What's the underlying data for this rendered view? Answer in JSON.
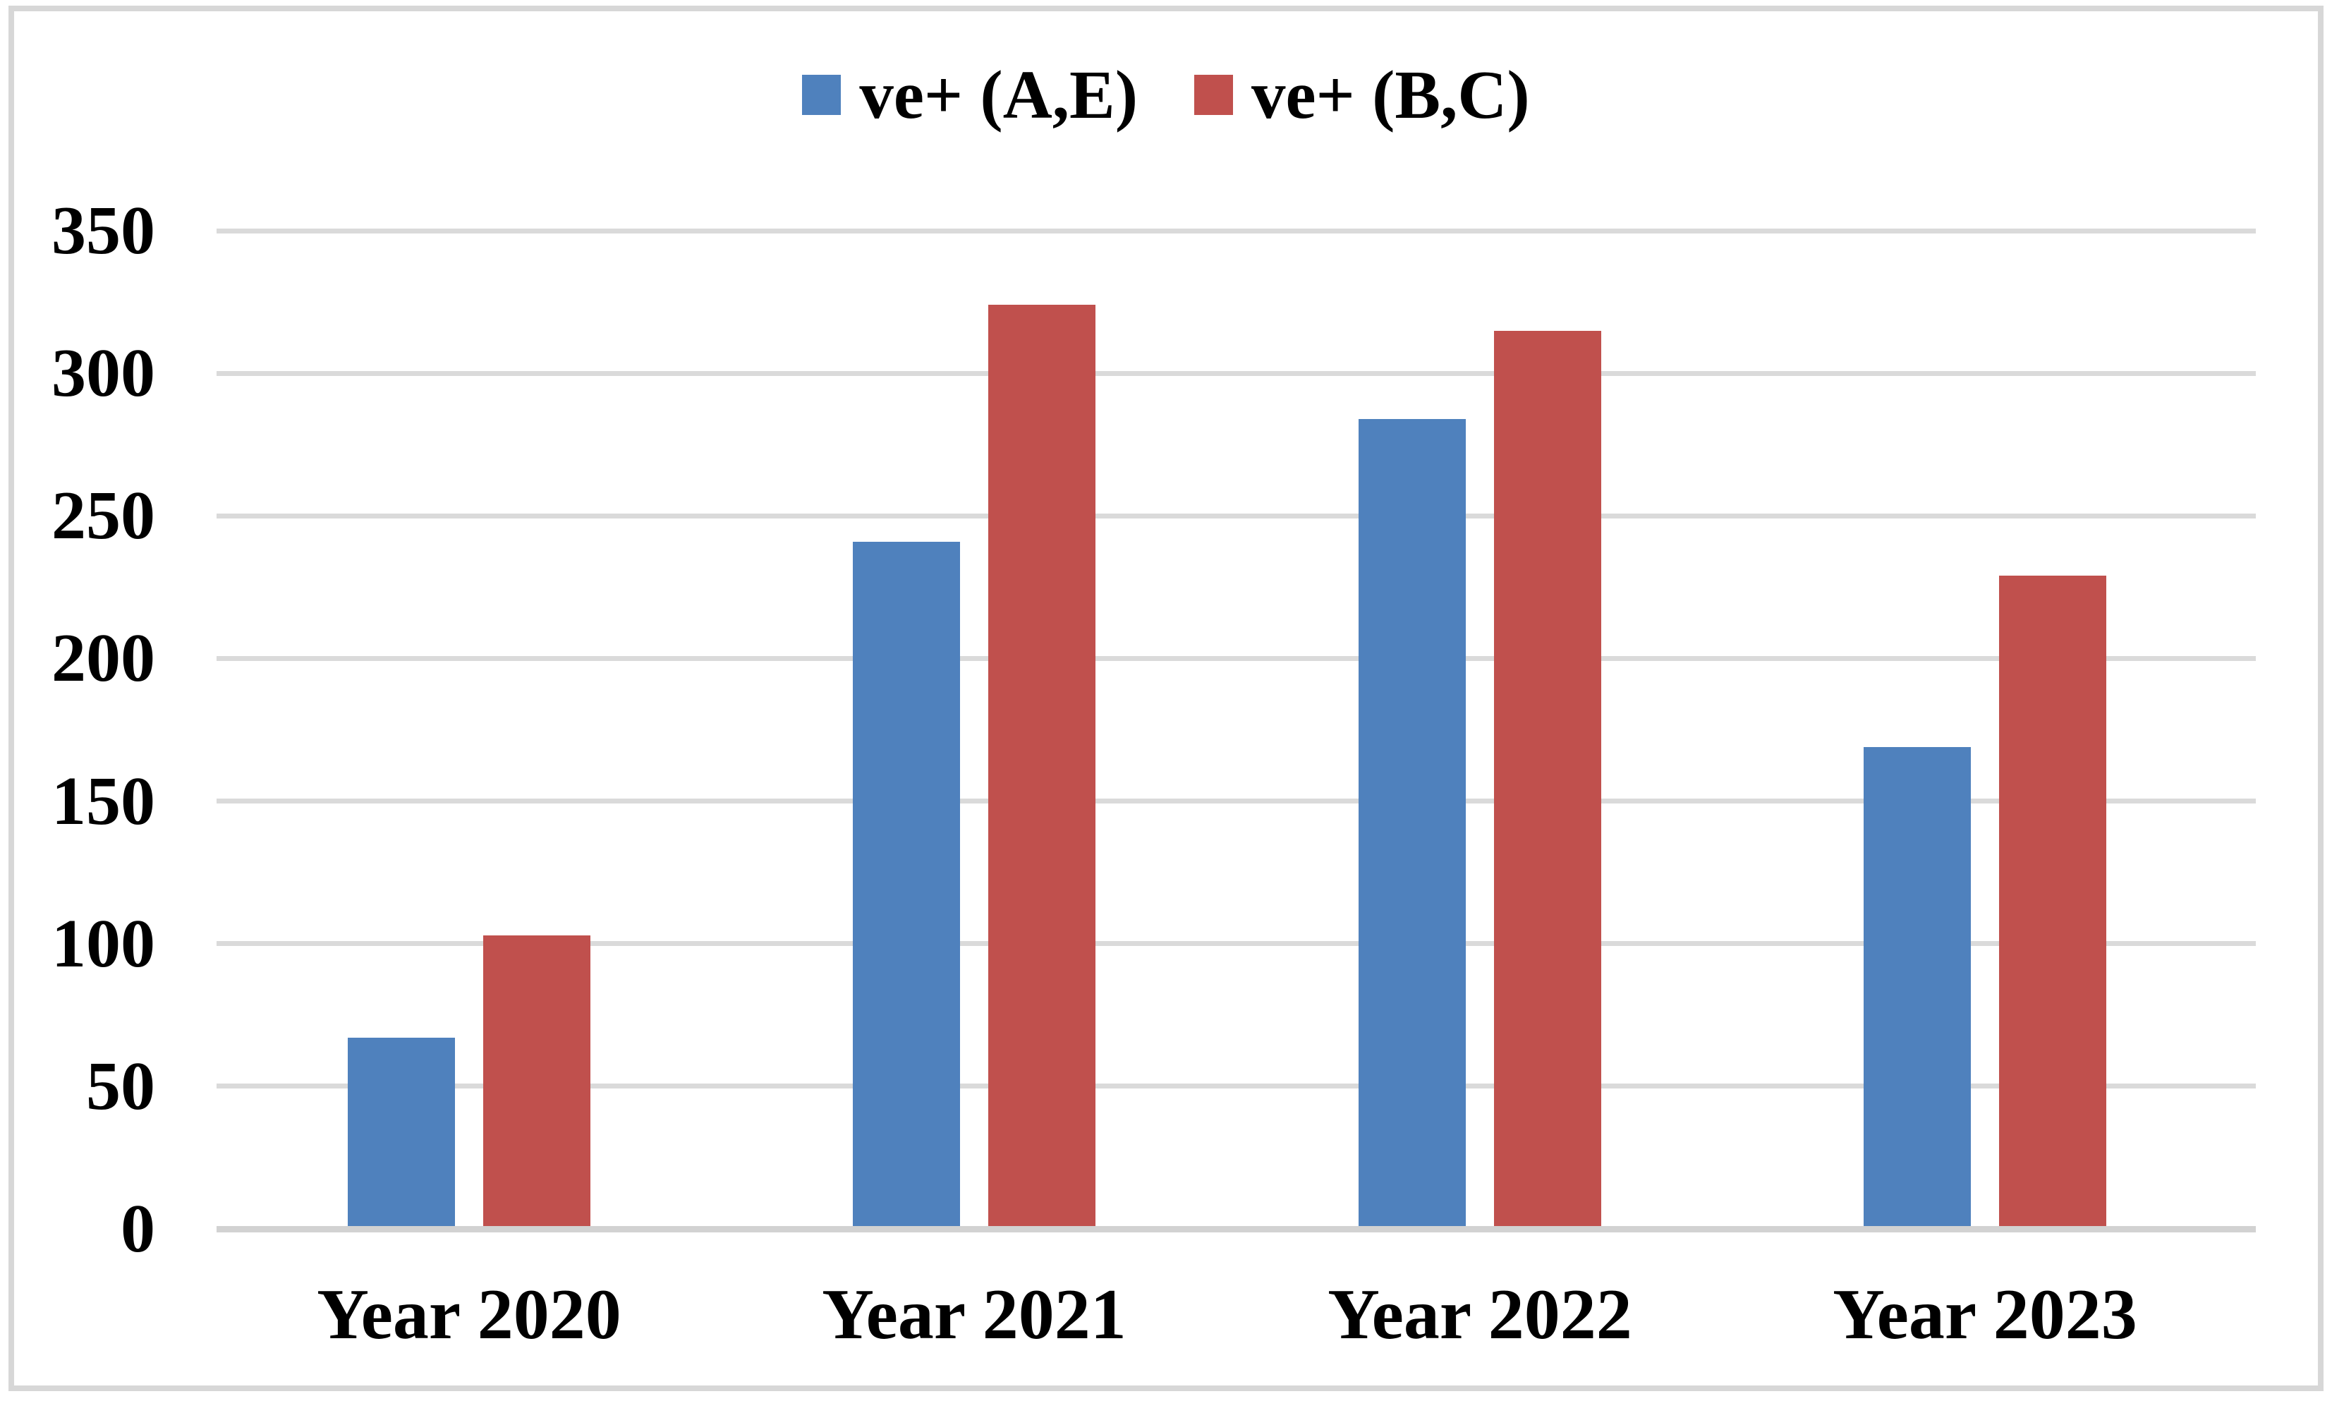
{
  "figure": {
    "background": "#FFFFFF",
    "border_color": "#D7D7D7",
    "gridline_color": "#DADADA",
    "axis_line_color": "#D2D2D2"
  },
  "chart_data": {
    "type": "bar",
    "title": "",
    "xlabel": "",
    "ylabel": "",
    "categories": [
      "Year 2020",
      "Year 2021",
      "Year 2022",
      "Year 2023"
    ],
    "series": [
      {
        "name": "ve+ (A,E)",
        "color": "#4F81BD",
        "values": [
          67,
          241,
          284,
          169
        ]
      },
      {
        "name": "ve+ (B,C)",
        "color": "#C0504D",
        "values": [
          103,
          324,
          315,
          229
        ]
      }
    ],
    "ylim": [
      0,
      350
    ],
    "yticks": [
      0,
      50,
      100,
      150,
      200,
      250,
      300,
      350
    ],
    "grid": true,
    "legend_position": "top"
  }
}
